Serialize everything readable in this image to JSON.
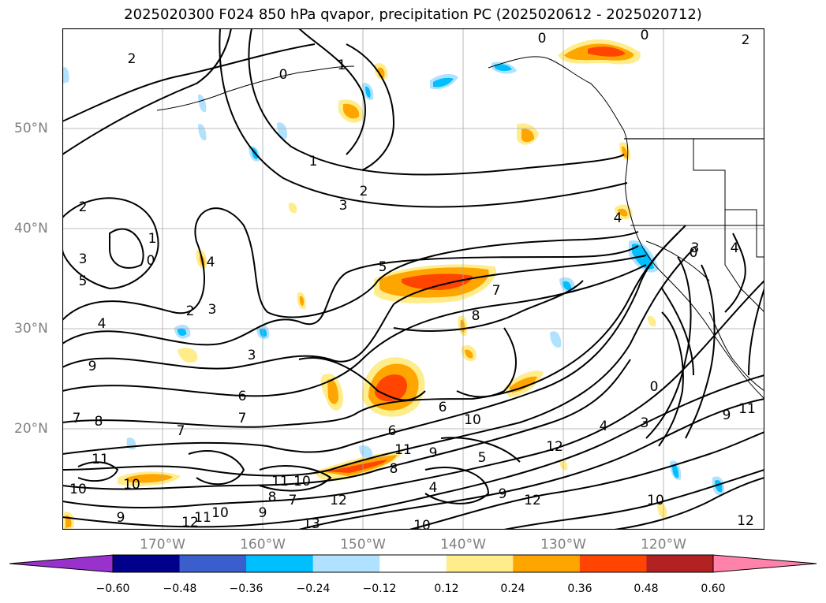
{
  "title": "2025020300 F024 850 hPa qvapor, precipitation PC (2025020612 - 2025020712)",
  "lon_labels": [
    "170°W",
    "160°W",
    "150°W",
    "140°W",
    "130°W",
    "120°W"
  ],
  "lat_labels": [
    "50°N",
    "40°N",
    "30°N",
    "20°N"
  ],
  "colorbar": {
    "ticks": [
      "−0.60",
      "−0.48",
      "−0.36",
      "−0.24",
      "−0.12",
      "0.12",
      "0.24",
      "0.36",
      "0.48",
      "0.60"
    ],
    "colors": [
      "#9932cc",
      "#00008b",
      "#3a5fcd",
      "#00bfff",
      "#b0e2ff",
      "#ffffff",
      "#ffec8b",
      "#ffa500",
      "#ff4500",
      "#b22222",
      "#ff82ab"
    ]
  },
  "contour_labels": [
    {
      "t": "2"
    },
    {
      "t": "1"
    },
    {
      "t": "0"
    },
    {
      "t": "0"
    },
    {
      "t": "1"
    },
    {
      "t": "2"
    },
    {
      "t": "3"
    },
    {
      "t": "4"
    },
    {
      "t": "2"
    },
    {
      "t": "1"
    },
    {
      "t": "0"
    },
    {
      "t": "3"
    },
    {
      "t": "5"
    },
    {
      "t": "4"
    },
    {
      "t": "2"
    },
    {
      "t": "3"
    },
    {
      "t": "3"
    },
    {
      "t": "4"
    },
    {
      "t": "9"
    },
    {
      "t": "6"
    },
    {
      "t": "7"
    },
    {
      "t": "7"
    },
    {
      "t": "8"
    },
    {
      "t": "7"
    },
    {
      "t": "5"
    },
    {
      "t": "7"
    },
    {
      "t": "8"
    },
    {
      "t": "6"
    },
    {
      "t": "10"
    },
    {
      "t": "6"
    },
    {
      "t": "11"
    },
    {
      "t": "9"
    },
    {
      "t": "5"
    },
    {
      "t": "8"
    },
    {
      "t": "4"
    },
    {
      "t": "9"
    },
    {
      "t": "12"
    },
    {
      "t": "11"
    },
    {
      "t": "10"
    },
    {
      "t": "11"
    },
    {
      "t": "10"
    },
    {
      "t": "8"
    },
    {
      "t": "7"
    },
    {
      "t": "12"
    },
    {
      "t": "9"
    },
    {
      "t": "10"
    },
    {
      "t": "12"
    },
    {
      "t": "11"
    },
    {
      "t": "13"
    },
    {
      "t": "10"
    },
    {
      "t": "9"
    },
    {
      "t": "10"
    },
    {
      "t": "4"
    },
    {
      "t": "3"
    },
    {
      "t": "0"
    },
    {
      "t": "0"
    },
    {
      "t": "4"
    },
    {
      "t": "3"
    },
    {
      "t": "10"
    },
    {
      "t": "12"
    },
    {
      "t": "9"
    },
    {
      "t": "11"
    },
    {
      "t": "12"
    },
    {
      "t": "0"
    },
    {
      "t": "2"
    }
  ]
}
